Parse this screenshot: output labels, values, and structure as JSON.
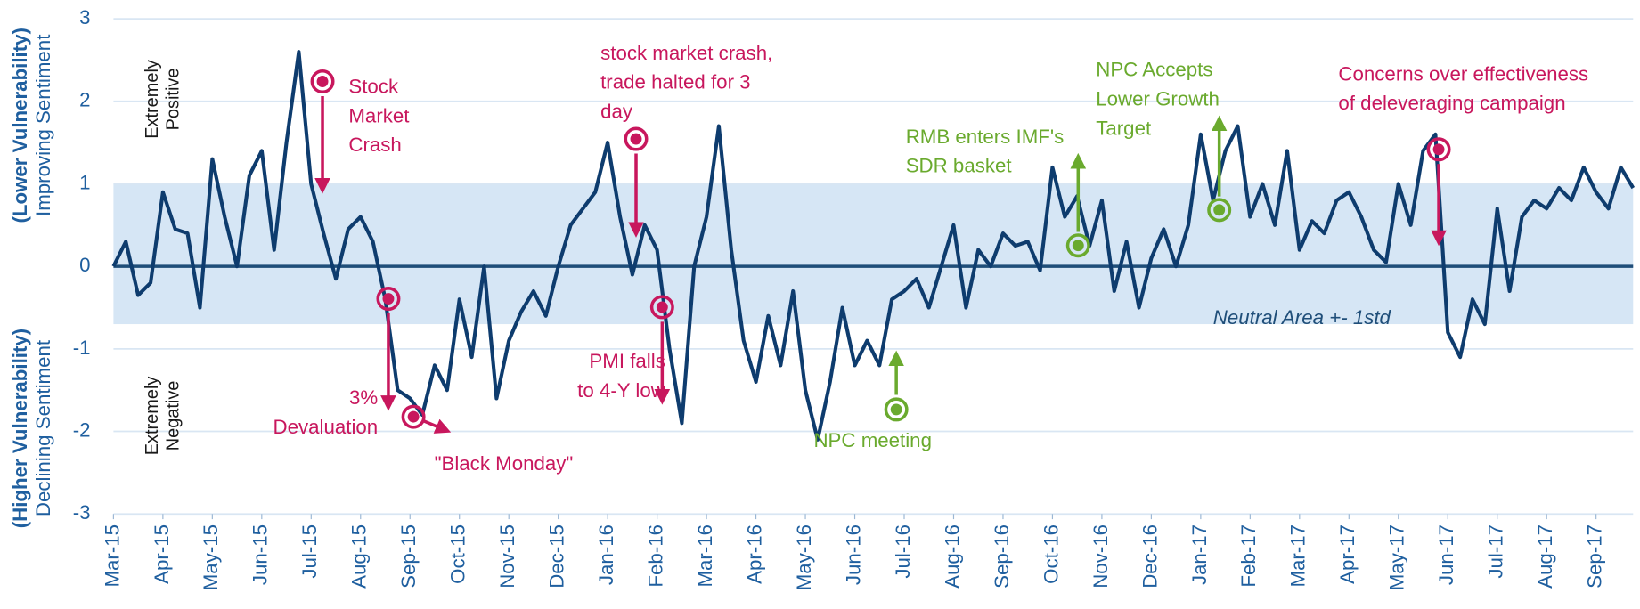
{
  "chart_data": {
    "type": "line",
    "y_axis_labels": {
      "upper": [
        "(Lower Vulnerability)",
        "Improving Sentiment"
      ],
      "lower": [
        "(Higher Vulnerability)",
        "Declining Sentiment"
      ]
    },
    "zone_labels": {
      "positive": [
        "Extremely",
        "Positive"
      ],
      "negative": [
        "Extremely",
        "Negative"
      ]
    },
    "band": {
      "range": [
        -0.7,
        1
      ],
      "label": "Neutral Area +- 1std",
      "color": "#d6e6f5"
    },
    "grid": true,
    "ylim": [
      -3,
      3
    ],
    "yticks": [
      -3,
      -2,
      -1,
      0,
      1,
      2,
      3
    ],
    "xlim": [
      0,
      30.75
    ],
    "xticks": [
      {
        "value": 0,
        "label": "Mar-15"
      },
      {
        "value": 1,
        "label": "Apr-15"
      },
      {
        "value": 2,
        "label": "May-15"
      },
      {
        "value": 3,
        "label": "Jun-15"
      },
      {
        "value": 4,
        "label": "Jul-15"
      },
      {
        "value": 5,
        "label": "Aug-15"
      },
      {
        "value": 6,
        "label": "Sep-15"
      },
      {
        "value": 7,
        "label": "Oct-15"
      },
      {
        "value": 8,
        "label": "Nov-15"
      },
      {
        "value": 9,
        "label": "Dec-15"
      },
      {
        "value": 10,
        "label": "Jan-16"
      },
      {
        "value": 11,
        "label": "Feb-16"
      },
      {
        "value": 12,
        "label": "Mar-16"
      },
      {
        "value": 13,
        "label": "Apr-16"
      },
      {
        "value": 14,
        "label": "May-16"
      },
      {
        "value": 15,
        "label": "Jun-16"
      },
      {
        "value": 16,
        "label": "Jul-16"
      },
      {
        "value": 17,
        "label": "Aug-16"
      },
      {
        "value": 18,
        "label": "Sep-16"
      },
      {
        "value": 19,
        "label": "Oct-16"
      },
      {
        "value": 20,
        "label": "Nov-16"
      },
      {
        "value": 21,
        "label": "Dec-16"
      },
      {
        "value": 22,
        "label": "Jan-17"
      },
      {
        "value": 23,
        "label": "Feb-17"
      },
      {
        "value": 24,
        "label": "Mar-17"
      },
      {
        "value": 25,
        "label": "Apr-17"
      },
      {
        "value": 26,
        "label": "May-17"
      },
      {
        "value": 27,
        "label": "Jun-17"
      },
      {
        "value": 28,
        "label": "Jul-17"
      },
      {
        "value": 29,
        "label": "Aug-17"
      },
      {
        "value": 30,
        "label": "Sep-17"
      }
    ],
    "x": [
      0,
      0.25,
      0.5,
      0.75,
      1,
      1.25,
      1.5,
      1.75,
      2,
      2.25,
      2.5,
      2.75,
      3,
      3.25,
      3.5,
      3.75,
      4,
      4.25,
      4.5,
      4.75,
      5,
      5.25,
      5.5,
      5.75,
      6,
      6.25,
      6.5,
      6.75,
      7,
      7.25,
      7.5,
      7.75,
      8,
      8.25,
      8.5,
      8.75,
      9,
      9.25,
      9.5,
      9.75,
      10,
      10.25,
      10.5,
      10.75,
      11,
      11.25,
      11.5,
      11.75,
      12,
      12.25,
      12.5,
      12.75,
      13,
      13.25,
      13.5,
      13.75,
      14,
      14.25,
      14.5,
      14.75,
      15,
      15.25,
      15.5,
      15.75,
      16,
      16.25,
      16.5,
      16.75,
      17,
      17.25,
      17.5,
      17.75,
      18,
      18.25,
      18.5,
      18.75,
      19,
      19.25,
      19.5,
      19.75,
      20,
      20.25,
      20.5,
      20.75,
      21,
      21.25,
      21.5,
      21.75,
      22,
      22.25,
      22.5,
      22.75,
      23,
      23.25,
      23.5,
      23.75,
      24,
      24.25,
      24.5,
      24.75,
      25,
      25.25,
      25.5,
      25.75,
      26,
      26.25,
      26.5,
      26.75,
      27,
      27.25,
      27.5,
      27.75,
      28,
      28.25,
      28.5,
      28.75,
      29,
      29.25,
      29.5,
      29.75,
      30,
      30.25,
      30.5,
      30.75
    ],
    "series": [
      {
        "color": "#0e3c6e",
        "values": [
          0,
          0.3,
          -0.35,
          -0.2,
          0.9,
          0.45,
          0.4,
          -0.5,
          1.3,
          0.6,
          0.0,
          1.1,
          1.4,
          0.2,
          1.5,
          2.6,
          1.0,
          0.4,
          -0.15,
          0.45,
          0.6,
          0.3,
          -0.4,
          -1.5,
          -1.6,
          -1.8,
          -1.2,
          -1.5,
          -0.4,
          -1.1,
          0.0,
          -1.6,
          -0.9,
          -0.55,
          -0.3,
          -0.6,
          0.0,
          0.5,
          0.7,
          0.9,
          1.5,
          0.6,
          -0.1,
          0.5,
          0.2,
          -1.0,
          -1.9,
          0.0,
          0.6,
          1.7,
          0.2,
          -0.9,
          -1.4,
          -0.6,
          -1.2,
          -0.3,
          -1.5,
          -2.1,
          -1.4,
          -0.5,
          -1.2,
          -0.9,
          -1.2,
          -0.4,
          -0.3,
          -0.15,
          -0.5,
          0.0,
          0.5,
          -0.5,
          0.2,
          0.0,
          0.4,
          0.25,
          0.3,
          -0.05,
          1.2,
          0.6,
          0.85,
          0.25,
          0.8,
          -0.3,
          0.3,
          -0.5,
          0.1,
          0.45,
          0.0,
          0.5,
          1.6,
          0.8,
          1.4,
          1.7,
          0.6,
          1.0,
          0.5,
          1.4,
          0.2,
          0.55,
          0.4,
          0.8,
          0.9,
          0.6,
          0.2,
          0.05,
          1.0,
          0.5,
          1.4,
          1.6,
          -0.8,
          -1.1,
          -0.4,
          -0.7,
          0.7,
          -0.3,
          0.6,
          0.8,
          0.7,
          0.95,
          0.8,
          1.2,
          0.9,
          0.7,
          1.2,
          0.95
        ]
      }
    ],
    "annotations": [
      {
        "lines": [
          "Stock",
          "Market",
          "Crash"
        ],
        "color": "#c8175d"
      },
      {
        "lines": [
          "stock market crash,",
          "trade halted for 3",
          "day"
        ],
        "color": "#c8175d"
      },
      {
        "lines": [
          "Concerns over effectiveness",
          "of deleveraging campaign"
        ],
        "color": "#c8175d"
      },
      {
        "lines": [
          "NPC Accepts",
          "Lower Growth",
          "Target"
        ],
        "color": "#6aaa2e"
      },
      {
        "lines": [
          "RMB enters IMF's",
          "SDR basket"
        ],
        "color": "#6aaa2e"
      },
      {
        "lines": [
          "PMI falls",
          "to 4-Y low"
        ],
        "color": "#c8175d"
      },
      {
        "lines": [
          "3%",
          "Devaluation"
        ],
        "color": "#c8175d"
      },
      {
        "lines": [
          "\"Black Monday\""
        ],
        "color": "#c8175d"
      },
      {
        "lines": [
          "NPC meeting"
        ],
        "color": "#6aaa2e"
      }
    ]
  }
}
